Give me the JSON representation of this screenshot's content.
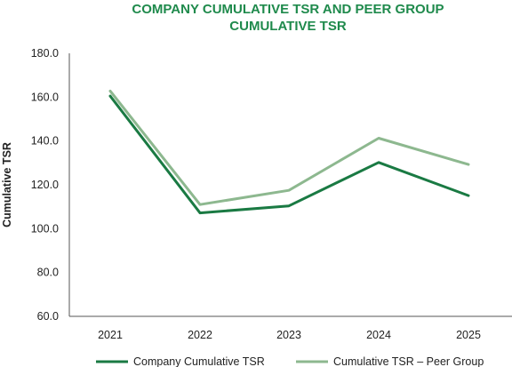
{
  "chart_data": {
    "type": "line",
    "title_lines": [
      "COMPANY CUMULATIVE TSR AND PEER GROUP",
      "CUMULATIVE TSR"
    ],
    "ylabel": "Cumulative TSR",
    "xlabel": "",
    "categories": [
      "2021",
      "2022",
      "2023",
      "2024",
      "2025"
    ],
    "ylim": [
      60,
      180
    ],
    "yticks": [
      60,
      80,
      100,
      120,
      140,
      160,
      180
    ],
    "ytick_labels": [
      "60.0",
      "80.0",
      "100.0",
      "120.0",
      "140.0",
      "160.0",
      "180.0"
    ],
    "grid": false,
    "legend_position": "bottom",
    "series": [
      {
        "name": "Company Cumulative TSR",
        "values": [
          160.5,
          107.2,
          110.4,
          130.2,
          115.1
        ],
        "color": "#1a7a43"
      },
      {
        "name": "Cumulative TSR – Peer Group",
        "values": [
          162.8,
          111.0,
          117.5,
          141.3,
          129.3
        ],
        "color": "#8db88f"
      }
    ]
  }
}
